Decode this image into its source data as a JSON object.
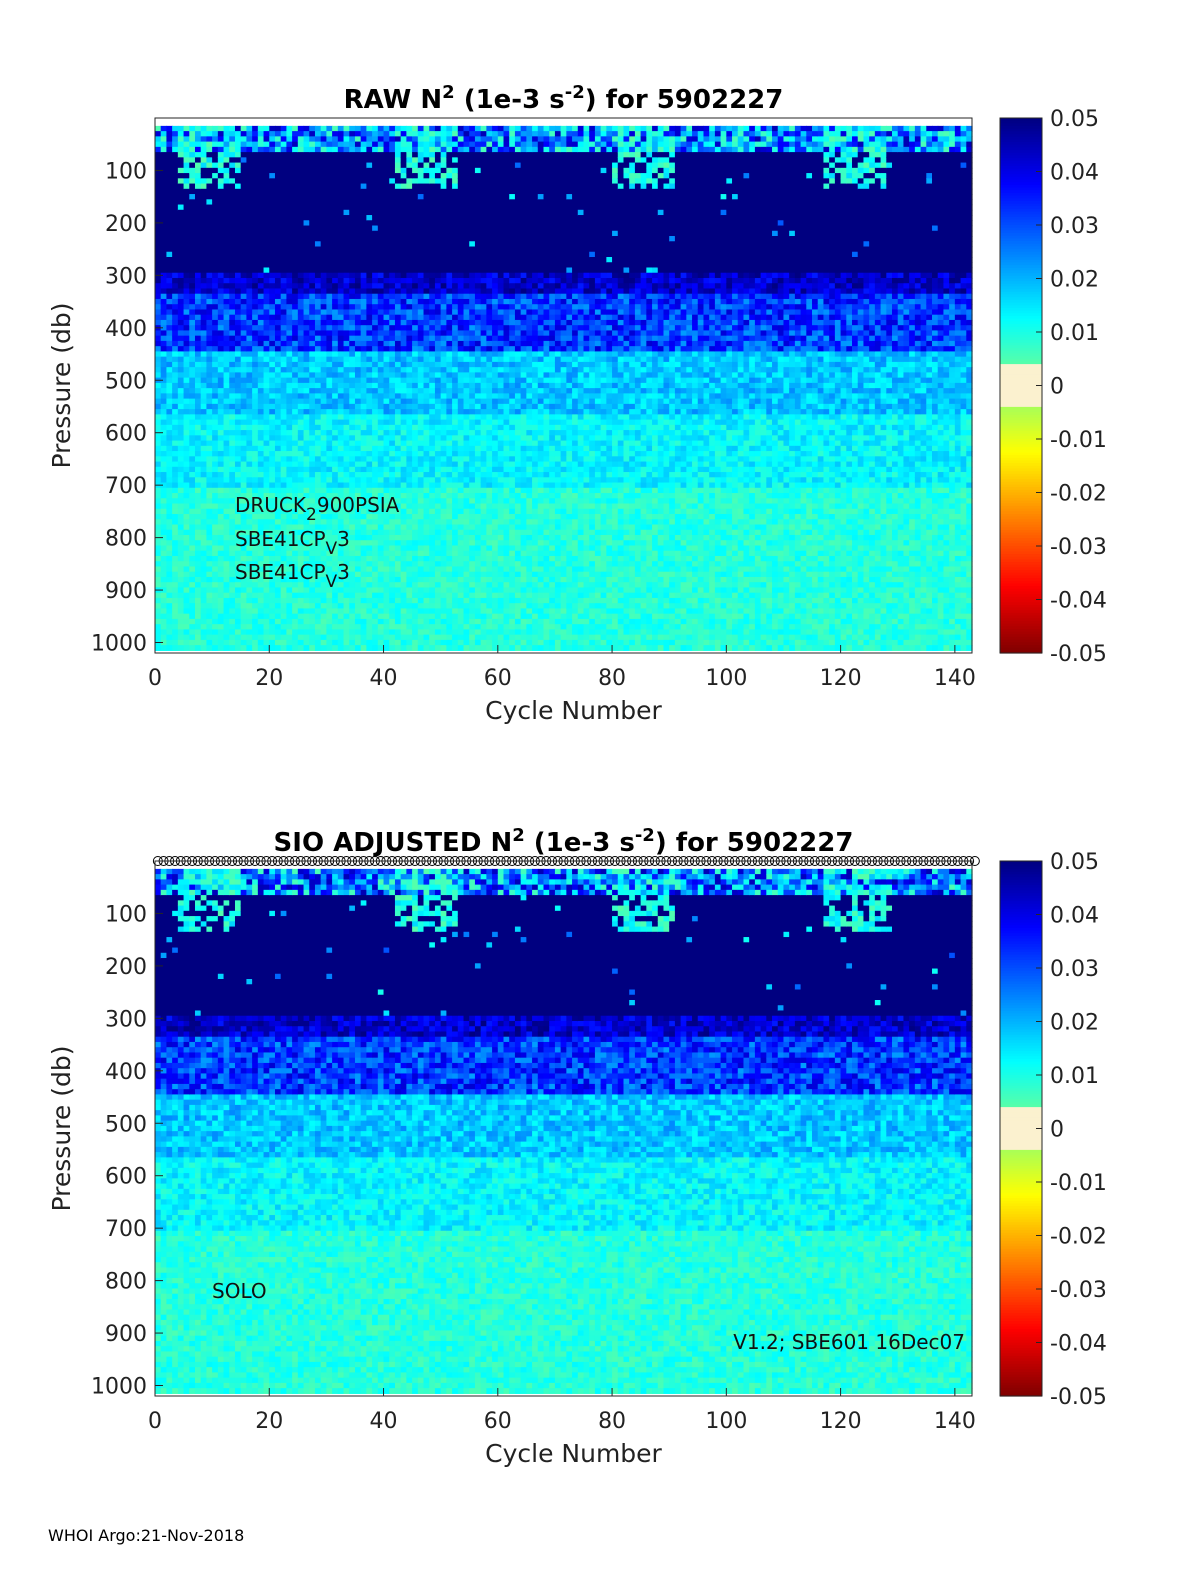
{
  "chart_data": [
    {
      "type": "heatmap",
      "title_parts": [
        "RAW N",
        "2",
        " (1e-3 s",
        "-2",
        ") for 5902227"
      ],
      "xlabel": "Cycle Number",
      "ylabel": "Pressure (db)",
      "xlim": [
        0,
        143
      ],
      "ylim": [
        1020,
        0
      ],
      "xticks": [
        0,
        20,
        40,
        60,
        80,
        100,
        120,
        140
      ],
      "yticks": [
        100,
        200,
        300,
        400,
        500,
        600,
        700,
        800,
        900,
        1000
      ],
      "colorbar_ticks": [
        0.05,
        0.04,
        0.03,
        0.02,
        0.01,
        0,
        -0.01,
        -0.02,
        -0.03,
        -0.04,
        -0.05
      ],
      "clim": [
        -0.05,
        0.05
      ],
      "annotations": [
        {
          "parts": [
            "DRUCK",
            "2",
            "900PSIA"
          ]
        },
        {
          "parts": [
            "SBE41CP",
            "V",
            "3"
          ]
        },
        {
          "parts": [
            "SBE41CP",
            "V",
            "3"
          ]
        }
      ]
    },
    {
      "type": "heatmap",
      "title_parts": [
        "SIO  ADJUSTED N",
        "2",
        " (1e-3 s",
        "-2",
        ") for 5902227"
      ],
      "xlabel": "Cycle Number",
      "ylabel": "Pressure (db)",
      "xlim": [
        0,
        143
      ],
      "ylim": [
        1020,
        0
      ],
      "xticks": [
        0,
        20,
        40,
        60,
        80,
        100,
        120,
        140
      ],
      "yticks": [
        100,
        200,
        300,
        400,
        500,
        600,
        700,
        800,
        900,
        1000
      ],
      "colorbar_ticks": [
        0.05,
        0.04,
        0.03,
        0.02,
        0.01,
        0,
        -0.01,
        -0.02,
        -0.03,
        -0.04,
        -0.05
      ],
      "clim": [
        -0.05,
        0.05
      ],
      "top_markers": "circle",
      "annotations": [
        {
          "parts": [
            "SOLO"
          ]
        },
        {
          "parts": [
            "V1.2; SBE601 16Dec07"
          ]
        }
      ]
    }
  ],
  "footer": "WHOI Argo:21-Nov-2018"
}
